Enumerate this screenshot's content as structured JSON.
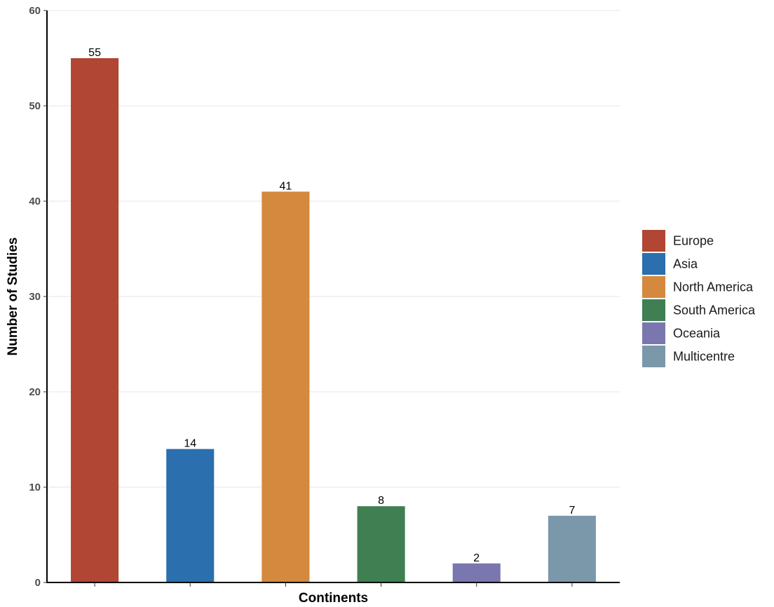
{
  "chart_data": {
    "type": "bar",
    "categories": [
      "Europe",
      "Asia",
      "North America",
      "South America",
      "Oceania",
      "Multicentre"
    ],
    "values": [
      55,
      14,
      41,
      8,
      2,
      7
    ],
    "colors": [
      "#b04633",
      "#2b6fae",
      "#d4893e",
      "#3f7f52",
      "#7a77af",
      "#7b98ab"
    ],
    "xlabel": "Continents",
    "ylabel": "Number of Studies",
    "ylim": [
      0,
      60
    ],
    "yticks": [
      "0",
      "10",
      "20",
      "30",
      "40",
      "50",
      "60"
    ],
    "grid": "horizontal",
    "legend": {
      "placement": "right",
      "entries": [
        "Europe",
        "Asia",
        "North America",
        "South America",
        "Oceania",
        "Multicentre"
      ]
    }
  }
}
